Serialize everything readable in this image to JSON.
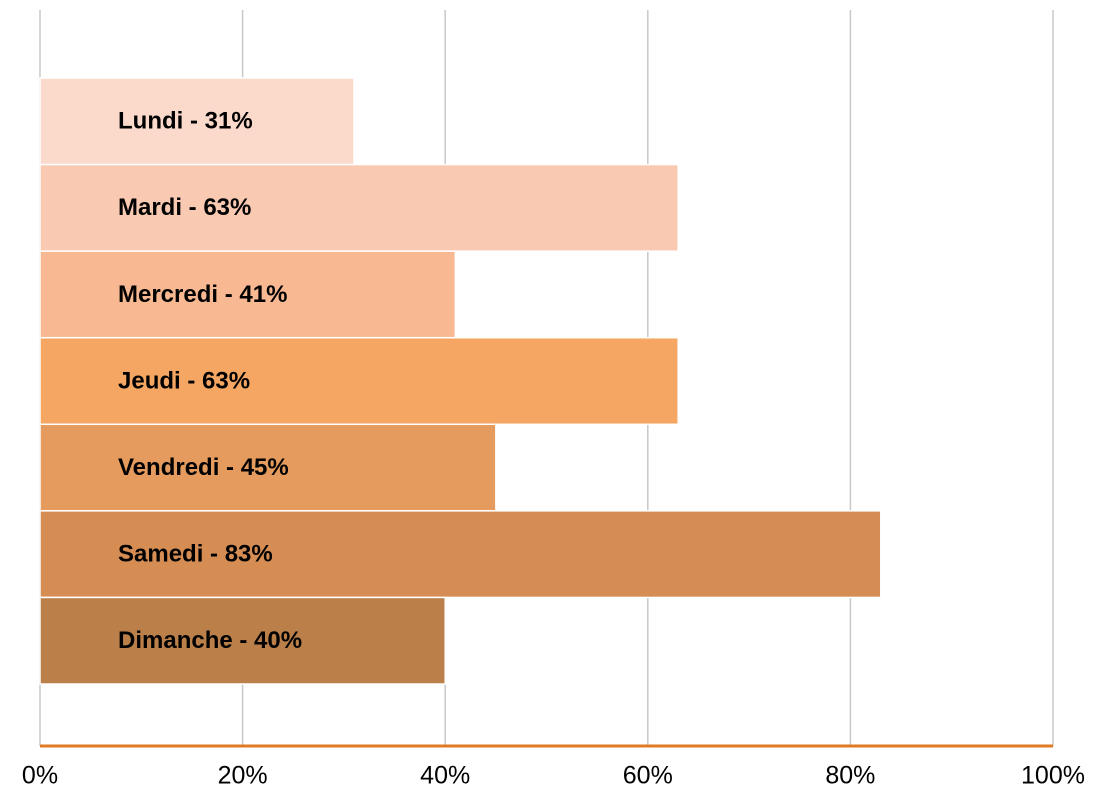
{
  "chart_data": {
    "type": "barh",
    "categories": [
      "Lundi - 31%",
      "Mardi - 63%",
      "Mercredi - 41%",
      "Jeudi - 63%",
      "Vendredi - 45%",
      "Samedi - 83%",
      "Dimanche - 40%"
    ],
    "values": [
      31,
      63,
      41,
      63,
      45,
      83,
      40
    ],
    "colors": [
      "#fbdacb",
      "#f9c9b2",
      "#f7b892",
      "#f5a662",
      "#e49b5d",
      "#d58d53",
      "#bb8049"
    ],
    "xlim": [
      0,
      100
    ],
    "xticks": [
      {
        "value": 0,
        "label": "0%"
      },
      {
        "value": 20,
        "label": "20%"
      },
      {
        "value": 40,
        "label": "40%"
      },
      {
        "value": 60,
        "label": "60%"
      },
      {
        "value": 80,
        "label": "80%"
      },
      {
        "value": 100,
        "label": "100%"
      }
    ],
    "grid": true,
    "axis_color": "#e07b24"
  }
}
